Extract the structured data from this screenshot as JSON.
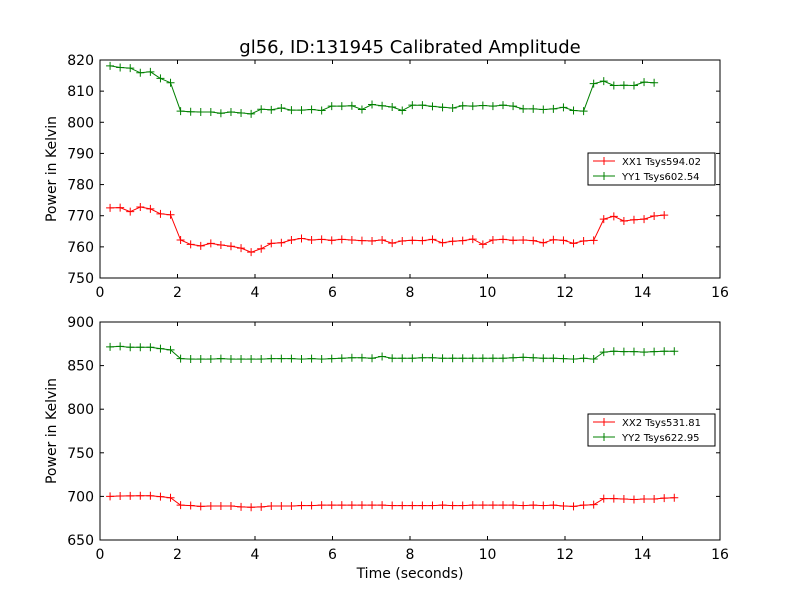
{
  "title": "gl56, ID:131945 Calibrated Amplitude",
  "xlabel": "Time (seconds)",
  "chart_data": [
    {
      "type": "line",
      "title": "gl56, ID:131945 Calibrated Amplitude",
      "xlabel": "",
      "ylabel": "Power in Kelvin",
      "xlim": [
        0,
        16
      ],
      "ylim": [
        750,
        820
      ],
      "xticks": [
        0,
        2,
        4,
        6,
        8,
        10,
        12,
        14,
        16
      ],
      "yticks": [
        750,
        760,
        770,
        780,
        790,
        800,
        810,
        820
      ],
      "grid": false,
      "legend_position": "right",
      "x": [
        0.26,
        0.52,
        0.78,
        1.04,
        1.3,
        1.56,
        1.82,
        2.08,
        2.34,
        2.6,
        2.86,
        3.12,
        3.38,
        3.64,
        3.9,
        4.16,
        4.42,
        4.68,
        4.94,
        5.2,
        5.46,
        5.72,
        5.98,
        6.24,
        6.5,
        6.76,
        7.02,
        7.28,
        7.54,
        7.8,
        8.06,
        8.32,
        8.58,
        8.84,
        9.1,
        9.36,
        9.62,
        9.88,
        10.14,
        10.4,
        10.66,
        10.92,
        11.18,
        11.44,
        11.7,
        11.96,
        12.22,
        12.48,
        12.74,
        13.0,
        13.26,
        13.52,
        13.78,
        14.04,
        14.3,
        14.56,
        14.82
      ],
      "series": [
        {
          "name": "XX1 Tsys594.02",
          "color": "#ff0000",
          "values": [
            772.5,
            772.6,
            771.3,
            772.8,
            772.2,
            770.6,
            770.3,
            762.2,
            760.8,
            760.3,
            761.1,
            760.6,
            760.2,
            759.6,
            758.3,
            759.4,
            761.1,
            761.3,
            762.2,
            762.7,
            762.2,
            762.4,
            762.1,
            762.4,
            762.2,
            762.0,
            761.9,
            762.2,
            761.2,
            761.9,
            762.1,
            762.0,
            762.4,
            761.3,
            761.8,
            762.0,
            762.5,
            760.8,
            762.2,
            762.4,
            762.1,
            762.2,
            762.0,
            761.3,
            762.3,
            762.1,
            761.1,
            761.9,
            762.1,
            768.9,
            769.8,
            768.3,
            768.7,
            768.9,
            769.9,
            770.2,
            null
          ]
        },
        {
          "name": "YY1 Tsys602.54",
          "color": "#008000",
          "values": [
            818.1,
            817.6,
            817.4,
            815.9,
            816.2,
            814.1,
            812.7,
            803.6,
            803.4,
            803.3,
            803.3,
            802.9,
            803.3,
            803.0,
            802.7,
            804.2,
            804.0,
            804.6,
            803.9,
            803.9,
            804.1,
            803.8,
            805.2,
            805.2,
            805.3,
            804.1,
            805.7,
            805.3,
            804.9,
            803.8,
            805.5,
            805.5,
            805.1,
            804.8,
            804.6,
            805.3,
            805.2,
            805.4,
            805.2,
            805.5,
            805.2,
            804.3,
            804.3,
            804.1,
            804.3,
            804.8,
            803.8,
            803.6,
            812.4,
            813.2,
            811.8,
            811.9,
            811.8,
            812.9,
            812.7,
            null,
            null
          ]
        }
      ]
    },
    {
      "type": "line",
      "title": "",
      "xlabel": "Time (seconds)",
      "ylabel": "Power in Kelvin",
      "xlim": [
        0,
        16
      ],
      "ylim": [
        650,
        900
      ],
      "xticks": [
        0,
        2,
        4,
        6,
        8,
        10,
        12,
        14,
        16
      ],
      "yticks": [
        650,
        700,
        750,
        800,
        850,
        900
      ],
      "grid": false,
      "legend_position": "right",
      "x": [
        0.26,
        0.52,
        0.78,
        1.04,
        1.3,
        1.56,
        1.82,
        2.08,
        2.34,
        2.6,
        2.86,
        3.12,
        3.38,
        3.64,
        3.9,
        4.16,
        4.42,
        4.68,
        4.94,
        5.2,
        5.46,
        5.72,
        5.98,
        6.24,
        6.5,
        6.76,
        7.02,
        7.28,
        7.54,
        7.8,
        8.06,
        8.32,
        8.58,
        8.84,
        9.1,
        9.36,
        9.62,
        9.88,
        10.14,
        10.4,
        10.66,
        10.92,
        11.18,
        11.44,
        11.7,
        11.96,
        12.22,
        12.48,
        12.74,
        13.0,
        13.26,
        13.52,
        13.78,
        14.04,
        14.3,
        14.56,
        14.82
      ],
      "series": [
        {
          "name": "XX2 Tsys531.81",
          "color": "#ff0000",
          "values": [
            700,
            700.5,
            700.6,
            700.8,
            700.8,
            699.8,
            698.5,
            690,
            689.5,
            688.5,
            689,
            689,
            689,
            688,
            687.5,
            688,
            689,
            689,
            689,
            689.5,
            689.5,
            690,
            690,
            690,
            690,
            690,
            690,
            690,
            689.5,
            689.5,
            689.5,
            689.5,
            689.5,
            690,
            689.5,
            689.5,
            690,
            690,
            690,
            690,
            690,
            689.5,
            690,
            689.5,
            690,
            689,
            688.5,
            690,
            690.5,
            697.5,
            697.5,
            697,
            696.5,
            697,
            697,
            698,
            698.5
          ]
        },
        {
          "name": "YY2 Tsys622.95",
          "color": "#008000",
          "values": [
            871.5,
            872,
            871,
            871,
            871,
            869.5,
            868,
            858,
            857.5,
            857.5,
            857.5,
            858,
            857.5,
            857.5,
            857.5,
            857.5,
            858,
            858,
            858,
            857.5,
            858,
            857.5,
            858,
            858.5,
            859,
            859,
            858.5,
            860.5,
            858.5,
            858.5,
            858.5,
            859,
            859,
            858.5,
            858.5,
            858.5,
            858.5,
            858.5,
            858.5,
            858.5,
            859,
            859.5,
            859,
            858.5,
            858.5,
            858,
            857.5,
            858.5,
            857.5,
            865.5,
            866.5,
            866,
            866,
            865.5,
            866,
            866.5,
            866.5
          ]
        }
      ]
    }
  ]
}
